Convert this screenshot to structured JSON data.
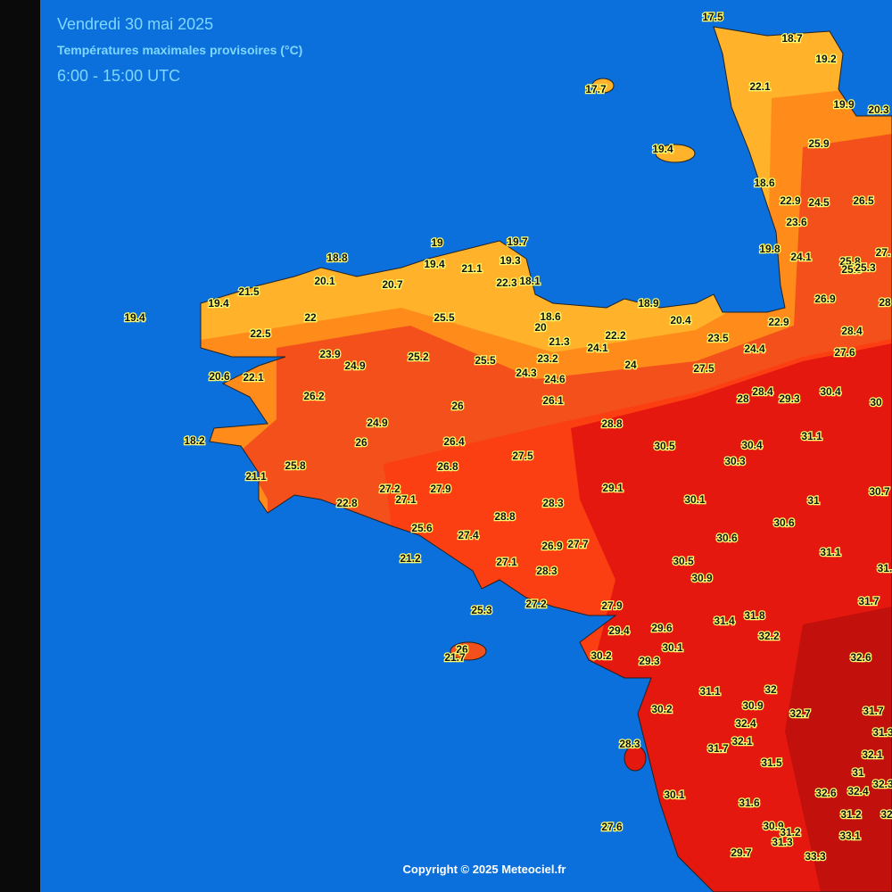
{
  "header": {
    "title": "Vendredi 30 mai 2025",
    "subtitle": "Températures maximales provisoires (°C)",
    "period": "6:00 - 15:00 UTC"
  },
  "stations": [
    "17.5",
    "18.7",
    "19.2",
    "17.7",
    "22.1",
    "19.9",
    "20.3",
    "25.9",
    "19.4",
    "18.6",
    "22.9",
    "24.5",
    "26.5",
    "23.6",
    "19.8",
    "24.1",
    "27.",
    "25.8",
    "25.9",
    "25.3",
    "19",
    "19.7",
    "19.3",
    "19.4",
    "21.1",
    "18.8",
    "22.3",
    "18.1",
    "21.5",
    "20.1",
    "20.7",
    "19.4",
    "19.4",
    "22",
    "25.5",
    "18.6",
    "18.9",
    "20",
    "20.4",
    "22.9",
    "26.9",
    "28",
    "22.5",
    "21.3",
    "22.2",
    "23.5",
    "24.4",
    "28.4",
    "23.9",
    "24.9",
    "25.2",
    "25.5",
    "23.2",
    "24.1",
    "24",
    "27.6",
    "24.3",
    "24.6",
    "27.5",
    "20.6",
    "22.1",
    "26.2",
    "26",
    "26.1",
    "28",
    "28.4",
    "29.3",
    "30.4",
    "30",
    "24.9",
    "28.8",
    "31.1",
    "18.2",
    "26",
    "26.4",
    "30.5",
    "30.4",
    "27.5",
    "30.3",
    "25.8",
    "26.8",
    "21.1",
    "27.2",
    "27.9",
    "29.1",
    "30.7",
    "27.1",
    "30.1",
    "31",
    "22.8",
    "28.3",
    "28.8",
    "30.6",
    "25.6",
    "27.4",
    "30.6",
    "26.9",
    "27.7",
    "31.1",
    "21.2",
    "30.5",
    "27.1",
    "31.",
    "28.3",
    "30.9",
    "31.7",
    "27.9",
    "25.3",
    "27.2",
    "31.8",
    "31.4",
    "29.6",
    "29.4",
    "32.2",
    "30.1",
    "26",
    "21.7",
    "30.2",
    "29.3",
    "32.6",
    "31.1",
    "32",
    "30.9",
    "32.7",
    "30.2",
    "31.7",
    "32.4",
    "32.1",
    "31.3",
    "28.3",
    "31.7",
    "32.1",
    "31.5",
    "31",
    "32.3",
    "32.6",
    "32.4",
    "30.1",
    "31.6",
    "31.2",
    "32",
    "27.6",
    "30.9",
    "31.2",
    "31.3",
    "33.1",
    "29.7",
    "33.3"
  ],
  "copyright": "Copyright © 2025 Meteociel.fr"
}
